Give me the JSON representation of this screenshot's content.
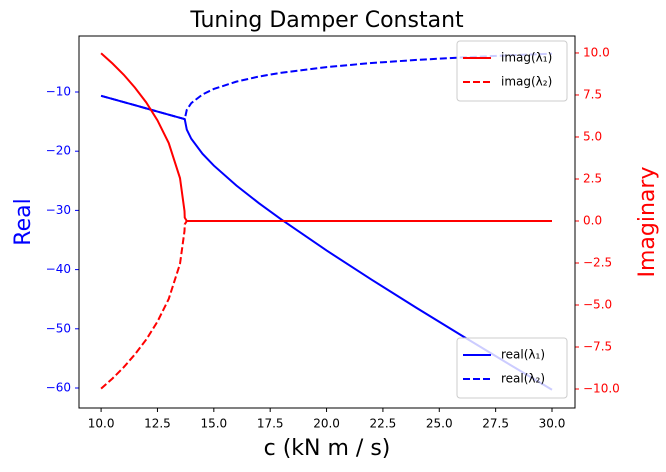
{
  "chart_data": {
    "type": "line",
    "title": "Tuning Damper Constant",
    "xlabel": "c (kN m / s)",
    "ylabel": "Real",
    "y2label": "Imaginary",
    "x": [
      10,
      10.5,
      11,
      11.5,
      12,
      12.5,
      13,
      13.5,
      13.7,
      13.71,
      13.8,
      14,
      14.5,
      15,
      16,
      17,
      18,
      20,
      22,
      24,
      26,
      28,
      30
    ],
    "series": [
      {
        "name": "real(λ₁)",
        "color": "#0000ff",
        "linestyle": "solid",
        "axis": "y",
        "values": [
          -10.64,
          -11.17,
          -11.7,
          -12.23,
          -12.77,
          -13.3,
          -13.83,
          -14.36,
          -14.57,
          -14.59,
          -16.34,
          -17.9,
          -20.44,
          -22.43,
          -25.79,
          -28.78,
          -31.55,
          -36.77,
          -41.71,
          -46.49,
          -51.16,
          -55.76,
          -60.3
        ]
      },
      {
        "name": "real(λ₂)",
        "color": "#0000ff",
        "linestyle": "dashed",
        "axis": "y",
        "values": [
          -10.64,
          -11.17,
          -11.7,
          -12.23,
          -12.77,
          -13.3,
          -13.83,
          -14.36,
          -14.57,
          -14.59,
          -13.02,
          -11.88,
          -10.41,
          -9.49,
          -8.25,
          -7.39,
          -6.74,
          -5.79,
          -5.1,
          -4.58,
          -4.16,
          -3.82,
          -3.53
        ]
      },
      {
        "name": "imag(λ₁)",
        "color": "#ff0000",
        "linestyle": "solid",
        "axis": "y2",
        "values": [
          9.98,
          9.38,
          8.71,
          7.94,
          7.06,
          5.99,
          4.64,
          2.55,
          0.59,
          0.2,
          0,
          0,
          0,
          0,
          0,
          0,
          0,
          0,
          0,
          0,
          0,
          0,
          0
        ]
      },
      {
        "name": "imag(λ₂)",
        "color": "#ff0000",
        "linestyle": "dashed",
        "axis": "y2",
        "values": [
          -9.98,
          -9.38,
          -8.71,
          -7.94,
          -7.06,
          -5.99,
          -4.64,
          -2.55,
          -0.59,
          -0.2,
          0,
          0,
          0,
          0,
          0,
          0,
          0,
          0,
          0,
          0,
          0,
          0,
          0
        ]
      }
    ],
    "xlim": [
      9.02,
      31.02
    ],
    "xticks": [
      {
        "value": 10,
        "label": "10.0"
      },
      {
        "value": 12.5,
        "label": "12.5"
      },
      {
        "value": 15,
        "label": "15.0"
      },
      {
        "value": 17.5,
        "label": "17.5"
      },
      {
        "value": 20,
        "label": "20.0"
      },
      {
        "value": 22.5,
        "label": "22.5"
      },
      {
        "value": 25,
        "label": "25.0"
      },
      {
        "value": 27.5,
        "label": "27.5"
      },
      {
        "value": 30,
        "label": "30.0"
      }
    ],
    "ylim": [
      -63.38,
      -0.54
    ],
    "yticks": [
      {
        "value": -60,
        "label": "−60"
      },
      {
        "value": -50,
        "label": "−50"
      },
      {
        "value": -40,
        "label": "−40"
      },
      {
        "value": -30,
        "label": "−30"
      },
      {
        "value": -20,
        "label": "−20"
      },
      {
        "value": -10,
        "label": "−10"
      }
    ],
    "y2lim": [
      -11.13,
      11.01
    ],
    "y2ticks": [
      {
        "value": -10,
        "label": "−10.0"
      },
      {
        "value": -7.5,
        "label": "−7.5"
      },
      {
        "value": -5,
        "label": "−5.0"
      },
      {
        "value": -2.5,
        "label": "−2.5"
      },
      {
        "value": 0,
        "label": "0.0"
      },
      {
        "value": 2.5,
        "label": "2.5"
      },
      {
        "value": 5,
        "label": "5.0"
      },
      {
        "value": 7.5,
        "label": "7.5"
      },
      {
        "value": 10,
        "label": "10.0"
      }
    ],
    "y_color": "#0000ff",
    "y2_color": "#ff0000",
    "legend_y": "lower right",
    "legend_y2": "upper right"
  }
}
